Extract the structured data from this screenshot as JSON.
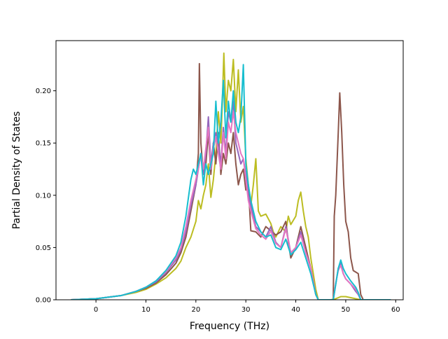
{
  "chart_data": {
    "type": "line",
    "xlabel": "Frequency (THz)",
    "ylabel": "Partial Density of States",
    "xlim": [
      -8,
      61.5
    ],
    "ylim": [
      0,
      0.248
    ],
    "xticks": [
      0,
      10,
      20,
      30,
      40,
      50,
      60
    ],
    "xtick_labels": [
      "0",
      "10",
      "20",
      "30",
      "40",
      "50",
      "60"
    ],
    "yticks": [
      0,
      0.05,
      0.1,
      0.15,
      0.2
    ],
    "ytick_labels": [
      "0.00",
      "0.05",
      "0.10",
      "0.15",
      "0.20"
    ],
    "grid": false,
    "legend": "none",
    "series": [
      {
        "color": "#bcbd22",
        "points": [
          [
            -5,
            0
          ],
          [
            0,
            0.001
          ],
          [
            5,
            0.004
          ],
          [
            8,
            0.007
          ],
          [
            10,
            0.01
          ],
          [
            12,
            0.015
          ],
          [
            14,
            0.021
          ],
          [
            16,
            0.03
          ],
          [
            17,
            0.037
          ],
          [
            18,
            0.05
          ],
          [
            19,
            0.06
          ],
          [
            20,
            0.075
          ],
          [
            20.5,
            0.095
          ],
          [
            21,
            0.087
          ],
          [
            21.5,
            0.1
          ],
          [
            22,
            0.11
          ],
          [
            22.5,
            0.13
          ],
          [
            23,
            0.098
          ],
          [
            23.5,
            0.115
          ],
          [
            24,
            0.14
          ],
          [
            24.5,
            0.18
          ],
          [
            25,
            0.15
          ],
          [
            25.3,
            0.19
          ],
          [
            25.6,
            0.236
          ],
          [
            26,
            0.18
          ],
          [
            26.5,
            0.21
          ],
          [
            27,
            0.2
          ],
          [
            27.5,
            0.23
          ],
          [
            28,
            0.18
          ],
          [
            28.5,
            0.22
          ],
          [
            29,
            0.17
          ],
          [
            29.5,
            0.185
          ],
          [
            30,
            0.135
          ],
          [
            30.5,
            0.11
          ],
          [
            31,
            0.09
          ],
          [
            31.5,
            0.11
          ],
          [
            32,
            0.135
          ],
          [
            32.5,
            0.085
          ],
          [
            33,
            0.08
          ],
          [
            34,
            0.082
          ],
          [
            35,
            0.073
          ],
          [
            35.5,
            0.065
          ],
          [
            36,
            0.06
          ],
          [
            37,
            0.07
          ],
          [
            38,
            0.065
          ],
          [
            38.5,
            0.08
          ],
          [
            39,
            0.072
          ],
          [
            40,
            0.08
          ],
          [
            40.5,
            0.095
          ],
          [
            41,
            0.103
          ],
          [
            41.5,
            0.085
          ],
          [
            42,
            0.07
          ],
          [
            42.5,
            0.06
          ],
          [
            43,
            0.04
          ],
          [
            44,
            0.01
          ],
          [
            44.5,
            0
          ],
          [
            47,
            0
          ],
          [
            48,
            0.001
          ],
          [
            49,
            0.003
          ],
          [
            50,
            0.003
          ],
          [
            51,
            0.002
          ],
          [
            52,
            0.001
          ],
          [
            53,
            0
          ],
          [
            59,
            0
          ]
        ]
      },
      {
        "color": "#8c564b",
        "points": [
          [
            -5,
            0
          ],
          [
            0,
            0.001
          ],
          [
            5,
            0.004
          ],
          [
            8,
            0.008
          ],
          [
            10,
            0.011
          ],
          [
            12,
            0.016
          ],
          [
            14,
            0.024
          ],
          [
            16,
            0.035
          ],
          [
            17,
            0.045
          ],
          [
            18,
            0.06
          ],
          [
            19,
            0.085
          ],
          [
            20,
            0.11
          ],
          [
            20.5,
            0.14
          ],
          [
            20.7,
            0.226
          ],
          [
            21,
            0.15
          ],
          [
            21.5,
            0.12
          ],
          [
            22,
            0.13
          ],
          [
            22.5,
            0.16
          ],
          [
            23,
            0.12
          ],
          [
            23.5,
            0.15
          ],
          [
            24,
            0.13
          ],
          [
            24.5,
            0.16
          ],
          [
            25,
            0.12
          ],
          [
            25.5,
            0.14
          ],
          [
            26,
            0.13
          ],
          [
            26.5,
            0.15
          ],
          [
            27,
            0.14
          ],
          [
            27.5,
            0.16
          ],
          [
            28,
            0.13
          ],
          [
            28.5,
            0.11
          ],
          [
            29,
            0.12
          ],
          [
            29.5,
            0.125
          ],
          [
            30,
            0.105
          ],
          [
            30.5,
            0.11
          ],
          [
            31,
            0.066
          ],
          [
            32,
            0.065
          ],
          [
            33,
            0.06
          ],
          [
            34,
            0.07
          ],
          [
            35,
            0.066
          ],
          [
            36,
            0.062
          ],
          [
            37,
            0.065
          ],
          [
            38,
            0.075
          ],
          [
            38.5,
            0.055
          ],
          [
            39,
            0.04
          ],
          [
            40,
            0.05
          ],
          [
            41,
            0.07
          ],
          [
            42,
            0.05
          ],
          [
            43,
            0.03
          ],
          [
            44,
            0.005
          ],
          [
            44.5,
            0
          ],
          [
            47.5,
            0
          ],
          [
            47.7,
            0.08
          ],
          [
            48,
            0.1
          ],
          [
            48.5,
            0.16
          ],
          [
            48.8,
            0.198
          ],
          [
            49.2,
            0.16
          ],
          [
            49.6,
            0.11
          ],
          [
            50,
            0.075
          ],
          [
            50.5,
            0.065
          ],
          [
            51,
            0.04
          ],
          [
            51.5,
            0.028
          ],
          [
            52.5,
            0.025
          ],
          [
            53,
            0.005
          ],
          [
            53.5,
            0
          ],
          [
            59,
            0
          ]
        ]
      },
      {
        "color": "#9467bd",
        "points": [
          [
            -5,
            0
          ],
          [
            0,
            0.001
          ],
          [
            5,
            0.004
          ],
          [
            8,
            0.008
          ],
          [
            10,
            0.012
          ],
          [
            12,
            0.017
          ],
          [
            14,
            0.026
          ],
          [
            16,
            0.038
          ],
          [
            17,
            0.048
          ],
          [
            18,
            0.065
          ],
          [
            19,
            0.09
          ],
          [
            20,
            0.11
          ],
          [
            20.5,
            0.125
          ],
          [
            21,
            0.14
          ],
          [
            21.5,
            0.12
          ],
          [
            22,
            0.14
          ],
          [
            22.5,
            0.175
          ],
          [
            23,
            0.13
          ],
          [
            23.5,
            0.15
          ],
          [
            24,
            0.16
          ],
          [
            24.5,
            0.15
          ],
          [
            25,
            0.13
          ],
          [
            25.5,
            0.165
          ],
          [
            26,
            0.14
          ],
          [
            26.5,
            0.18
          ],
          [
            27,
            0.17
          ],
          [
            27.5,
            0.19
          ],
          [
            28,
            0.15
          ],
          [
            28.5,
            0.14
          ],
          [
            29,
            0.13
          ],
          [
            29.5,
            0.135
          ],
          [
            30,
            0.12
          ],
          [
            30.5,
            0.1
          ],
          [
            31,
            0.09
          ],
          [
            32,
            0.07
          ],
          [
            33,
            0.065
          ],
          [
            34,
            0.06
          ],
          [
            35,
            0.07
          ],
          [
            36,
            0.055
          ],
          [
            37,
            0.05
          ],
          [
            38,
            0.07
          ],
          [
            39,
            0.045
          ],
          [
            40,
            0.05
          ],
          [
            41,
            0.065
          ],
          [
            42,
            0.045
          ],
          [
            43,
            0.03
          ],
          [
            44,
            0.005
          ],
          [
            44.5,
            0
          ],
          [
            47.5,
            0
          ],
          [
            48,
            0.015
          ],
          [
            48.5,
            0.03
          ],
          [
            49,
            0.035
          ],
          [
            49.5,
            0.025
          ],
          [
            50,
            0.02
          ],
          [
            51,
            0.015
          ],
          [
            52,
            0.008
          ],
          [
            52.5,
            0.005
          ],
          [
            53,
            0
          ],
          [
            59,
            0
          ]
        ]
      },
      {
        "color": "#e377c2",
        "points": [
          [
            -5,
            0
          ],
          [
            0,
            0.001
          ],
          [
            5,
            0.004
          ],
          [
            8,
            0.008
          ],
          [
            10,
            0.012
          ],
          [
            12,
            0.018
          ],
          [
            14,
            0.027
          ],
          [
            16,
            0.04
          ],
          [
            17,
            0.05
          ],
          [
            18,
            0.07
          ],
          [
            19,
            0.095
          ],
          [
            20,
            0.115
          ],
          [
            20.5,
            0.125
          ],
          [
            21,
            0.14
          ],
          [
            21.5,
            0.125
          ],
          [
            22,
            0.145
          ],
          [
            22.5,
            0.165
          ],
          [
            23,
            0.125
          ],
          [
            23.5,
            0.145
          ],
          [
            24,
            0.155
          ],
          [
            24.5,
            0.14
          ],
          [
            25,
            0.125
          ],
          [
            25.5,
            0.16
          ],
          [
            26,
            0.135
          ],
          [
            26.5,
            0.17
          ],
          [
            27,
            0.16
          ],
          [
            27.5,
            0.18
          ],
          [
            28,
            0.16
          ],
          [
            28.5,
            0.15
          ],
          [
            29,
            0.14
          ],
          [
            29.5,
            0.135
          ],
          [
            30,
            0.115
          ],
          [
            30.5,
            0.095
          ],
          [
            31,
            0.085
          ],
          [
            32,
            0.068
          ],
          [
            33,
            0.062
          ],
          [
            34,
            0.058
          ],
          [
            35,
            0.066
          ],
          [
            36,
            0.054
          ],
          [
            37,
            0.05
          ],
          [
            38,
            0.068
          ],
          [
            39,
            0.045
          ],
          [
            40,
            0.05
          ],
          [
            41,
            0.062
          ],
          [
            42,
            0.045
          ],
          [
            43,
            0.03
          ],
          [
            44,
            0.005
          ],
          [
            44.5,
            0
          ],
          [
            47.5,
            0
          ],
          [
            48,
            0.016
          ],
          [
            48.5,
            0.028
          ],
          [
            49,
            0.033
          ],
          [
            49.5,
            0.025
          ],
          [
            50,
            0.02
          ],
          [
            51,
            0.015
          ],
          [
            52,
            0.01
          ],
          [
            52.5,
            0.006
          ],
          [
            53,
            0
          ],
          [
            59,
            0
          ]
        ]
      },
      {
        "color": "#17becf",
        "points": [
          [
            -5,
            0
          ],
          [
            0,
            0.001
          ],
          [
            5,
            0.004
          ],
          [
            8,
            0.008
          ],
          [
            10,
            0.012
          ],
          [
            12,
            0.018
          ],
          [
            14,
            0.028
          ],
          [
            16,
            0.042
          ],
          [
            17,
            0.055
          ],
          [
            18,
            0.08
          ],
          [
            19,
            0.115
          ],
          [
            19.5,
            0.125
          ],
          [
            20,
            0.12
          ],
          [
            20.5,
            0.13
          ],
          [
            21,
            0.14
          ],
          [
            21.5,
            0.11
          ],
          [
            22,
            0.13
          ],
          [
            22.5,
            0.12
          ],
          [
            23,
            0.13
          ],
          [
            23.5,
            0.14
          ],
          [
            24,
            0.19
          ],
          [
            24.5,
            0.15
          ],
          [
            25,
            0.17
          ],
          [
            25.5,
            0.21
          ],
          [
            26,
            0.155
          ],
          [
            26.5,
            0.19
          ],
          [
            27,
            0.17
          ],
          [
            27.5,
            0.2
          ],
          [
            28,
            0.17
          ],
          [
            28.5,
            0.16
          ],
          [
            29,
            0.175
          ],
          [
            29.5,
            0.225
          ],
          [
            30,
            0.13
          ],
          [
            30.5,
            0.11
          ],
          [
            31,
            0.095
          ],
          [
            32,
            0.075
          ],
          [
            33,
            0.065
          ],
          [
            34,
            0.06
          ],
          [
            35,
            0.062
          ],
          [
            36,
            0.05
          ],
          [
            37,
            0.048
          ],
          [
            38,
            0.058
          ],
          [
            39,
            0.043
          ],
          [
            40,
            0.048
          ],
          [
            41,
            0.055
          ],
          [
            42,
            0.04
          ],
          [
            43,
            0.025
          ],
          [
            44,
            0.005
          ],
          [
            44.5,
            0
          ],
          [
            47.5,
            0
          ],
          [
            48,
            0.015
          ],
          [
            48.5,
            0.03
          ],
          [
            49,
            0.038
          ],
          [
            49.5,
            0.03
          ],
          [
            50,
            0.025
          ],
          [
            51,
            0.018
          ],
          [
            52,
            0.012
          ],
          [
            52.5,
            0.007
          ],
          [
            53,
            0
          ],
          [
            59,
            0
          ]
        ]
      }
    ]
  }
}
